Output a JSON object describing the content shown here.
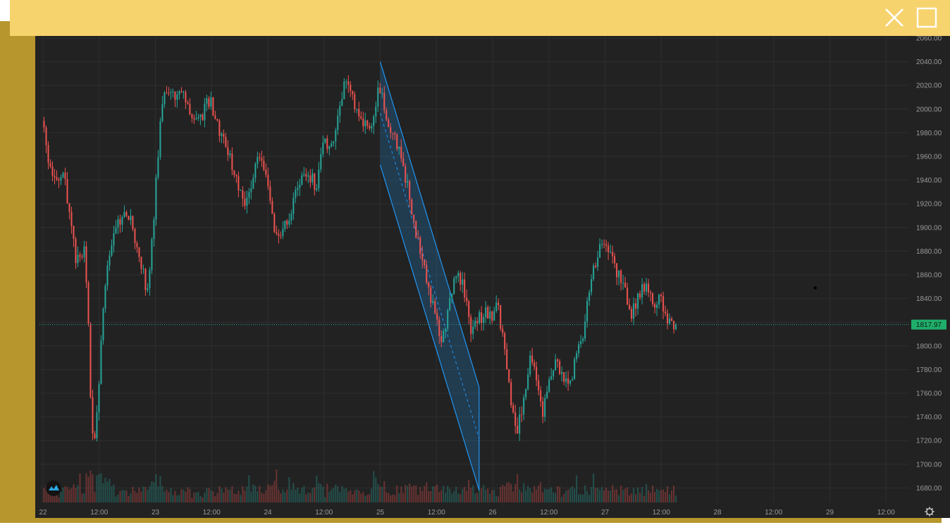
{
  "window": {
    "close_icon": "close-icon",
    "maximize_icon": "maximize-icon",
    "bar_color": "#f7d36e",
    "frame_color": "#b8962e"
  },
  "chart_data": {
    "type": "candlestick",
    "title": "",
    "xlabel": "",
    "ylabel": "",
    "ylim": [
      1670,
      2060
    ],
    "y_ticks": [
      "2060.00",
      "2040.00",
      "2020.00",
      "2000.00",
      "1980.00",
      "1960.00",
      "1940.00",
      "1920.00",
      "1900.00",
      "1880.00",
      "1860.00",
      "1840.00",
      "1820.00",
      "1800.00",
      "1780.00",
      "1760.00",
      "1740.00",
      "1720.00",
      "1700.00",
      "1680.00"
    ],
    "x_ticks": [
      "22",
      "12:00",
      "23",
      "12:00",
      "24",
      "12:00",
      "25",
      "12:00",
      "26",
      "12:00",
      "27",
      "12:00",
      "28",
      "12:00",
      "29",
      "12:00"
    ],
    "x_range_days": [
      22.0,
      29.7
    ],
    "last_price": "1817.97",
    "grid": true,
    "colors": {
      "background": "#222222",
      "up": "#26a69a",
      "down": "#ef5350",
      "price_line": "#26a69a",
      "channel": "#2196f3",
      "price_tag_bg": "#1fae6b"
    },
    "price_path": [
      {
        "t": 22.0,
        "p": 1990
      },
      {
        "t": 22.06,
        "p": 1955
      },
      {
        "t": 22.12,
        "p": 1935
      },
      {
        "t": 22.19,
        "p": 1948
      },
      {
        "t": 22.25,
        "p": 1905
      },
      {
        "t": 22.31,
        "p": 1870
      },
      {
        "t": 22.38,
        "p": 1880
      },
      {
        "t": 22.41,
        "p": 1830
      },
      {
        "t": 22.44,
        "p": 1735
      },
      {
        "t": 22.47,
        "p": 1720
      },
      {
        "t": 22.5,
        "p": 1760
      },
      {
        "t": 22.56,
        "p": 1850
      },
      {
        "t": 22.62,
        "p": 1890
      },
      {
        "t": 22.69,
        "p": 1905
      },
      {
        "t": 22.75,
        "p": 1912
      },
      {
        "t": 22.81,
        "p": 1900
      },
      {
        "t": 22.88,
        "p": 1870
      },
      {
        "t": 22.94,
        "p": 1845
      },
      {
        "t": 23.0,
        "p": 1915
      },
      {
        "t": 23.06,
        "p": 2000
      },
      {
        "t": 23.12,
        "p": 2018
      },
      {
        "t": 23.19,
        "p": 2008
      },
      {
        "t": 23.25,
        "p": 2015
      },
      {
        "t": 23.31,
        "p": 2000
      },
      {
        "t": 23.38,
        "p": 1990
      },
      {
        "t": 23.44,
        "p": 1998
      },
      {
        "t": 23.5,
        "p": 2010
      },
      {
        "t": 23.56,
        "p": 1985
      },
      {
        "t": 23.62,
        "p": 1975
      },
      {
        "t": 23.69,
        "p": 1955
      },
      {
        "t": 23.75,
        "p": 1935
      },
      {
        "t": 23.81,
        "p": 1920
      },
      {
        "t": 23.88,
        "p": 1945
      },
      {
        "t": 23.94,
        "p": 1965
      },
      {
        "t": 24.0,
        "p": 1945
      },
      {
        "t": 24.06,
        "p": 1900
      },
      {
        "t": 24.12,
        "p": 1892
      },
      {
        "t": 24.19,
        "p": 1908
      },
      {
        "t": 24.25,
        "p": 1925
      },
      {
        "t": 24.31,
        "p": 1938
      },
      {
        "t": 24.38,
        "p": 1945
      },
      {
        "t": 24.44,
        "p": 1935
      },
      {
        "t": 24.5,
        "p": 1975
      },
      {
        "t": 24.56,
        "p": 1962
      },
      {
        "t": 24.62,
        "p": 1990
      },
      {
        "t": 24.69,
        "p": 2020
      },
      {
        "t": 24.75,
        "p": 2012
      },
      {
        "t": 24.81,
        "p": 1998
      },
      {
        "t": 24.88,
        "p": 1985
      },
      {
        "t": 24.94,
        "p": 1990
      },
      {
        "t": 25.0,
        "p": 2018
      },
      {
        "t": 25.06,
        "p": 1995
      },
      {
        "t": 25.12,
        "p": 1980
      },
      {
        "t": 25.19,
        "p": 1960
      },
      {
        "t": 25.25,
        "p": 1935
      },
      {
        "t": 25.31,
        "p": 1905
      },
      {
        "t": 25.38,
        "p": 1870
      },
      {
        "t": 25.44,
        "p": 1850
      },
      {
        "t": 25.5,
        "p": 1822
      },
      {
        "t": 25.56,
        "p": 1805
      },
      {
        "t": 25.62,
        "p": 1835
      },
      {
        "t": 25.69,
        "p": 1862
      },
      {
        "t": 25.75,
        "p": 1850
      },
      {
        "t": 25.81,
        "p": 1815
      },
      {
        "t": 25.88,
        "p": 1822
      },
      {
        "t": 25.94,
        "p": 1828
      },
      {
        "t": 26.0,
        "p": 1825
      },
      {
        "t": 26.06,
        "p": 1835
      },
      {
        "t": 26.12,
        "p": 1790
      },
      {
        "t": 26.19,
        "p": 1740
      },
      {
        "t": 26.22,
        "p": 1722
      },
      {
        "t": 26.28,
        "p": 1752
      },
      {
        "t": 26.34,
        "p": 1792
      },
      {
        "t": 26.4,
        "p": 1775
      },
      {
        "t": 26.45,
        "p": 1740
      },
      {
        "t": 26.5,
        "p": 1762
      },
      {
        "t": 26.56,
        "p": 1785
      },
      {
        "t": 26.62,
        "p": 1778
      },
      {
        "t": 26.69,
        "p": 1760
      },
      {
        "t": 26.75,
        "p": 1792
      },
      {
        "t": 26.81,
        "p": 1808
      },
      {
        "t": 26.88,
        "p": 1850
      },
      {
        "t": 26.94,
        "p": 1878
      },
      {
        "t": 27.0,
        "p": 1885
      },
      {
        "t": 27.06,
        "p": 1874
      },
      {
        "t": 27.12,
        "p": 1862
      },
      {
        "t": 27.19,
        "p": 1845
      },
      {
        "t": 27.25,
        "p": 1826
      },
      {
        "t": 27.31,
        "p": 1845
      },
      {
        "t": 27.38,
        "p": 1855
      },
      {
        "t": 27.44,
        "p": 1830
      },
      {
        "t": 27.5,
        "p": 1845
      },
      {
        "t": 27.56,
        "p": 1822
      },
      {
        "t": 27.62,
        "p": 1816
      },
      {
        "t": 27.64,
        "p": 1818
      }
    ],
    "channel": {
      "upper": [
        {
          "t": 25.0,
          "p": 2040
        },
        {
          "t": 25.88,
          "p": 1765
        }
      ],
      "lower": [
        {
          "t": 25.0,
          "p": 1953
        },
        {
          "t": 25.88,
          "p": 1678
        }
      ]
    },
    "marker_point": {
      "t": 28.87,
      "p": 1849
    }
  }
}
